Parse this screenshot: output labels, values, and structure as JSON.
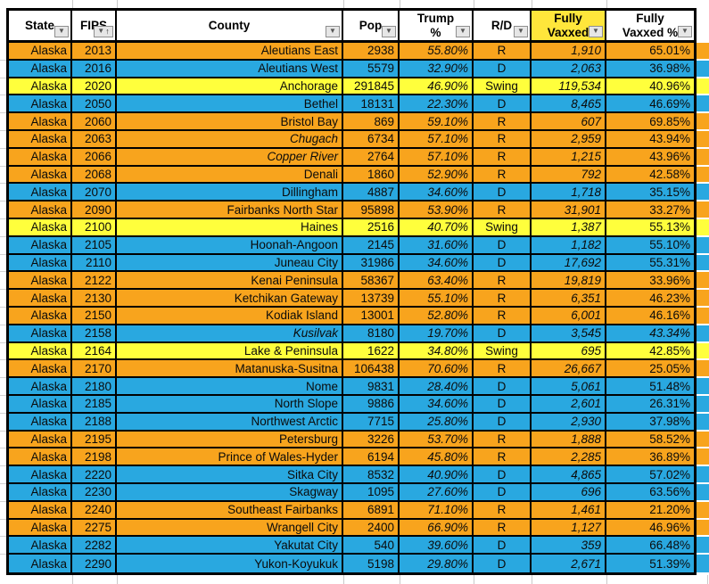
{
  "sheet": {
    "icons": {
      "filter_caret": "▼",
      "sort_ascending": "↑"
    },
    "colors": {
      "republican_row": "#F8A41D",
      "democrat_row": "#29A8E0",
      "swing_row": "#FFFF3C",
      "highlight_header": "#FFE63B",
      "grid_black": "#000000",
      "minor_gridline": "#C9C9C9"
    },
    "columns": [
      {
        "key": "state",
        "label": "State"
      },
      {
        "key": "fips",
        "label": "FIPS"
      },
      {
        "key": "county",
        "label": "County"
      },
      {
        "key": "pop",
        "label": "Pop"
      },
      {
        "key": "trump",
        "label": "Trump\n%"
      },
      {
        "key": "rd",
        "label": "R/D"
      },
      {
        "key": "vaxxed",
        "label": "Fully\nVaxxed"
      },
      {
        "key": "vaxxed_pct",
        "label": "Fully\nVaxxed %"
      }
    ],
    "rows": [
      {
        "state": "Alaska",
        "fips": "2013",
        "county": "Aleutians East",
        "pop": "2938",
        "trump": "55.80%",
        "rd": "R",
        "vaxxed": "1,910",
        "vaxxed_pct": "65.01%"
      },
      {
        "state": "Alaska",
        "fips": "2016",
        "county": "Aleutians West",
        "pop": "5579",
        "trump": "32.90%",
        "rd": "D",
        "vaxxed": "2,063",
        "vaxxed_pct": "36.98%"
      },
      {
        "state": "Alaska",
        "fips": "2020",
        "county": "Anchorage",
        "pop": "291845",
        "trump": "46.90%",
        "rd": "Swing",
        "vaxxed": "119,534",
        "vaxxed_pct": "40.96%"
      },
      {
        "state": "Alaska",
        "fips": "2050",
        "county": "Bethel",
        "pop": "18131",
        "trump": "22.30%",
        "rd": "D",
        "vaxxed": "8,465",
        "vaxxed_pct": "46.69%"
      },
      {
        "state": "Alaska",
        "fips": "2060",
        "county": "Bristol Bay",
        "pop": "869",
        "trump": "59.10%",
        "rd": "R",
        "vaxxed": "607",
        "vaxxed_pct": "69.85%"
      },
      {
        "state": "Alaska",
        "fips": "2063",
        "county": "Chugach",
        "pop": "6734",
        "trump": "57.10%",
        "rd": "R",
        "vaxxed": "2,959",
        "vaxxed_pct": "43.94%",
        "county_italic": true
      },
      {
        "state": "Alaska",
        "fips": "2066",
        "county": "Copper River",
        "pop": "2764",
        "trump": "57.10%",
        "rd": "R",
        "vaxxed": "1,215",
        "vaxxed_pct": "43.96%",
        "county_italic": true
      },
      {
        "state": "Alaska",
        "fips": "2068",
        "county": "Denali",
        "pop": "1860",
        "trump": "52.90%",
        "rd": "R",
        "vaxxed": "792",
        "vaxxed_pct": "42.58%"
      },
      {
        "state": "Alaska",
        "fips": "2070",
        "county": "Dillingham",
        "pop": "4887",
        "trump": "34.60%",
        "rd": "D",
        "vaxxed": "1,718",
        "vaxxed_pct": "35.15%"
      },
      {
        "state": "Alaska",
        "fips": "2090",
        "county": "Fairbanks North Star",
        "pop": "95898",
        "trump": "53.90%",
        "rd": "R",
        "vaxxed": "31,901",
        "vaxxed_pct": "33.27%"
      },
      {
        "state": "Alaska",
        "fips": "2100",
        "county": "Haines",
        "pop": "2516",
        "trump": "40.70%",
        "rd": "Swing",
        "vaxxed": "1,387",
        "vaxxed_pct": "55.13%"
      },
      {
        "state": "Alaska",
        "fips": "2105",
        "county": "Hoonah-Angoon",
        "pop": "2145",
        "trump": "31.60%",
        "rd": "D",
        "vaxxed": "1,182",
        "vaxxed_pct": "55.10%"
      },
      {
        "state": "Alaska",
        "fips": "2110",
        "county": "Juneau City",
        "pop": "31986",
        "trump": "34.60%",
        "rd": "D",
        "vaxxed": "17,692",
        "vaxxed_pct": "55.31%"
      },
      {
        "state": "Alaska",
        "fips": "2122",
        "county": "Kenai Peninsula",
        "pop": "58367",
        "trump": "63.40%",
        "rd": "R",
        "vaxxed": "19,819",
        "vaxxed_pct": "33.96%"
      },
      {
        "state": "Alaska",
        "fips": "2130",
        "county": "Ketchikan Gateway",
        "pop": "13739",
        "trump": "55.10%",
        "rd": "R",
        "vaxxed": "6,351",
        "vaxxed_pct": "46.23%"
      },
      {
        "state": "Alaska",
        "fips": "2150",
        "county": "Kodiak Island",
        "pop": "13001",
        "trump": "52.80%",
        "rd": "R",
        "vaxxed": "6,001",
        "vaxxed_pct": "46.16%"
      },
      {
        "state": "Alaska",
        "fips": "2158",
        "county": "Kusilvak",
        "pop": "8180",
        "trump": "19.70%",
        "rd": "D",
        "vaxxed": "3,545",
        "vaxxed_pct": "43.34%",
        "county_italic": true,
        "vaxxed_pct_italic": true
      },
      {
        "state": "Alaska",
        "fips": "2164",
        "county": "Lake & Peninsula",
        "pop": "1622",
        "trump": "34.80%",
        "rd": "Swing",
        "vaxxed": "695",
        "vaxxed_pct": "42.85%"
      },
      {
        "state": "Alaska",
        "fips": "2170",
        "county": "Matanuska-Susitna",
        "pop": "106438",
        "trump": "70.60%",
        "rd": "R",
        "vaxxed": "26,667",
        "vaxxed_pct": "25.05%"
      },
      {
        "state": "Alaska",
        "fips": "2180",
        "county": "Nome",
        "pop": "9831",
        "trump": "28.40%",
        "rd": "D",
        "vaxxed": "5,061",
        "vaxxed_pct": "51.48%"
      },
      {
        "state": "Alaska",
        "fips": "2185",
        "county": "North Slope",
        "pop": "9886",
        "trump": "34.60%",
        "rd": "D",
        "vaxxed": "2,601",
        "vaxxed_pct": "26.31%"
      },
      {
        "state": "Alaska",
        "fips": "2188",
        "county": "Northwest Arctic",
        "pop": "7715",
        "trump": "25.80%",
        "rd": "D",
        "vaxxed": "2,930",
        "vaxxed_pct": "37.98%"
      },
      {
        "state": "Alaska",
        "fips": "2195",
        "county": "Petersburg",
        "pop": "3226",
        "trump": "53.70%",
        "rd": "R",
        "vaxxed": "1,888",
        "vaxxed_pct": "58.52%"
      },
      {
        "state": "Alaska",
        "fips": "2198",
        "county": "Prince of Wales-Hyder",
        "pop": "6194",
        "trump": "45.80%",
        "rd": "R",
        "vaxxed": "2,285",
        "vaxxed_pct": "36.89%"
      },
      {
        "state": "Alaska",
        "fips": "2220",
        "county": "Sitka City",
        "pop": "8532",
        "trump": "40.90%",
        "rd": "D",
        "vaxxed": "4,865",
        "vaxxed_pct": "57.02%"
      },
      {
        "state": "Alaska",
        "fips": "2230",
        "county": "Skagway",
        "pop": "1095",
        "trump": "27.60%",
        "rd": "D",
        "vaxxed": "696",
        "vaxxed_pct": "63.56%"
      },
      {
        "state": "Alaska",
        "fips": "2240",
        "county": "Southeast Fairbanks",
        "pop": "6891",
        "trump": "71.10%",
        "rd": "R",
        "vaxxed": "1,461",
        "vaxxed_pct": "21.20%"
      },
      {
        "state": "Alaska",
        "fips": "2275",
        "county": "Wrangell City",
        "pop": "2400",
        "trump": "66.90%",
        "rd": "R",
        "vaxxed": "1,127",
        "vaxxed_pct": "46.96%"
      },
      {
        "state": "Alaska",
        "fips": "2282",
        "county": "Yakutat City",
        "pop": "540",
        "trump": "39.60%",
        "rd": "D",
        "vaxxed": "359",
        "vaxxed_pct": "66.48%"
      },
      {
        "state": "Alaska",
        "fips": "2290",
        "county": "Yukon-Koyukuk",
        "pop": "5198",
        "trump": "29.80%",
        "rd": "D",
        "vaxxed": "2,671",
        "vaxxed_pct": "51.39%"
      }
    ]
  }
}
